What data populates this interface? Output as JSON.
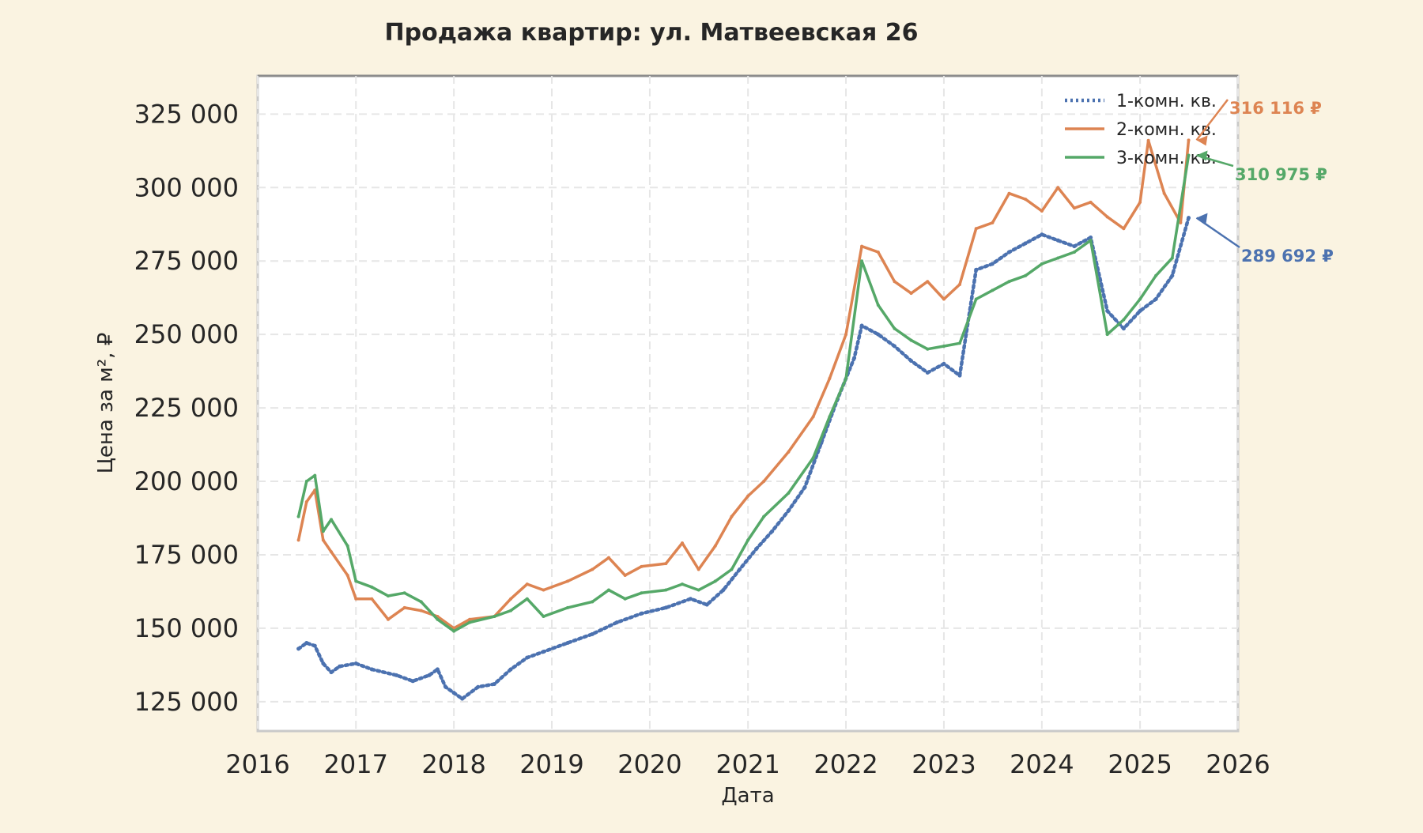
{
  "chart_data": {
    "type": "line",
    "title": "Продажа квартир: ул. Матвеевская 26",
    "xlabel": "Дата",
    "ylabel": "Цена за м², ₽",
    "xlim": [
      "2016-01-01",
      "2026-01-01"
    ],
    "ylim": [
      115000,
      338000
    ],
    "x_ticks": [
      "2016",
      "2017",
      "2018",
      "2019",
      "2020",
      "2021",
      "2022",
      "2023",
      "2024",
      "2025",
      "2026"
    ],
    "y_ticks": [
      125000,
      150000,
      175000,
      200000,
      225000,
      250000,
      275000,
      300000,
      325000
    ],
    "y_tick_labels": [
      "125 000",
      "150 000",
      "175 000",
      "200 000",
      "225 000",
      "250 000",
      "275 000",
      "300 000",
      "325 000"
    ],
    "grid": true,
    "legend_position": "top-right",
    "series": [
      {
        "name": "1-комн. кв.",
        "color": "#4c72b0",
        "style": "dotted",
        "points": [
          [
            "2016-06-01",
            143000
          ],
          [
            "2016-07-01",
            145000
          ],
          [
            "2016-08-01",
            144000
          ],
          [
            "2016-09-01",
            138000
          ],
          [
            "2016-10-01",
            135000
          ],
          [
            "2016-11-01",
            137000
          ],
          [
            "2017-01-01",
            138000
          ],
          [
            "2017-03-01",
            136000
          ],
          [
            "2017-06-01",
            134000
          ],
          [
            "2017-08-01",
            132000
          ],
          [
            "2017-10-01",
            134000
          ],
          [
            "2017-11-01",
            136000
          ],
          [
            "2017-12-01",
            130000
          ],
          [
            "2018-01-01",
            128000
          ],
          [
            "2018-02-01",
            126000
          ],
          [
            "2018-04-01",
            130000
          ],
          [
            "2018-06-01",
            131000
          ],
          [
            "2018-08-01",
            136000
          ],
          [
            "2018-10-01",
            140000
          ],
          [
            "2018-12-01",
            142000
          ],
          [
            "2019-03-01",
            145000
          ],
          [
            "2019-06-01",
            148000
          ],
          [
            "2019-09-01",
            152000
          ],
          [
            "2019-12-01",
            155000
          ],
          [
            "2020-03-01",
            157000
          ],
          [
            "2020-06-01",
            160000
          ],
          [
            "2020-08-01",
            158000
          ],
          [
            "2020-10-01",
            163000
          ],
          [
            "2020-12-01",
            170000
          ],
          [
            "2021-02-01",
            177000
          ],
          [
            "2021-04-01",
            183000
          ],
          [
            "2021-06-01",
            190000
          ],
          [
            "2021-08-01",
            198000
          ],
          [
            "2021-10-01",
            213000
          ],
          [
            "2021-12-01",
            228000
          ],
          [
            "2022-02-01",
            242000
          ],
          [
            "2022-03-01",
            253000
          ],
          [
            "2022-05-01",
            250000
          ],
          [
            "2022-07-01",
            246000
          ],
          [
            "2022-09-01",
            241000
          ],
          [
            "2022-11-01",
            237000
          ],
          [
            "2023-01-01",
            240000
          ],
          [
            "2023-03-01",
            236000
          ],
          [
            "2023-05-01",
            272000
          ],
          [
            "2023-07-01",
            274000
          ],
          [
            "2023-09-01",
            278000
          ],
          [
            "2023-11-01",
            281000
          ],
          [
            "2024-01-01",
            284000
          ],
          [
            "2024-03-01",
            282000
          ],
          [
            "2024-05-01",
            280000
          ],
          [
            "2024-07-01",
            283000
          ],
          [
            "2024-09-01",
            258000
          ],
          [
            "2024-11-01",
            252000
          ],
          [
            "2025-01-01",
            258000
          ],
          [
            "2025-03-01",
            262000
          ],
          [
            "2025-05-01",
            270000
          ],
          [
            "2025-07-01",
            289692
          ]
        ]
      },
      {
        "name": "2-комн. кв.",
        "color": "#dd8452",
        "style": "solid",
        "points": [
          [
            "2016-06-01",
            180000
          ],
          [
            "2016-07-01",
            193000
          ],
          [
            "2016-08-01",
            197000
          ],
          [
            "2016-09-01",
            180000
          ],
          [
            "2016-10-01",
            176000
          ],
          [
            "2016-12-01",
            168000
          ],
          [
            "2017-01-01",
            160000
          ],
          [
            "2017-03-01",
            160000
          ],
          [
            "2017-05-01",
            153000
          ],
          [
            "2017-07-01",
            157000
          ],
          [
            "2017-09-01",
            156000
          ],
          [
            "2017-11-01",
            154000
          ],
          [
            "2018-01-01",
            150000
          ],
          [
            "2018-03-01",
            153000
          ],
          [
            "2018-06-01",
            154000
          ],
          [
            "2018-08-01",
            160000
          ],
          [
            "2018-10-01",
            165000
          ],
          [
            "2018-12-01",
            163000
          ],
          [
            "2019-03-01",
            166000
          ],
          [
            "2019-06-01",
            170000
          ],
          [
            "2019-08-01",
            174000
          ],
          [
            "2019-10-01",
            168000
          ],
          [
            "2019-12-01",
            171000
          ],
          [
            "2020-03-01",
            172000
          ],
          [
            "2020-05-01",
            179000
          ],
          [
            "2020-07-01",
            170000
          ],
          [
            "2020-09-01",
            178000
          ],
          [
            "2020-11-01",
            188000
          ],
          [
            "2021-01-01",
            195000
          ],
          [
            "2021-03-01",
            200000
          ],
          [
            "2021-06-01",
            210000
          ],
          [
            "2021-09-01",
            222000
          ],
          [
            "2021-11-01",
            235000
          ],
          [
            "2022-01-01",
            250000
          ],
          [
            "2022-03-01",
            280000
          ],
          [
            "2022-05-01",
            278000
          ],
          [
            "2022-07-01",
            268000
          ],
          [
            "2022-09-01",
            264000
          ],
          [
            "2022-11-01",
            268000
          ],
          [
            "2023-01-01",
            262000
          ],
          [
            "2023-03-01",
            267000
          ],
          [
            "2023-05-01",
            286000
          ],
          [
            "2023-07-01",
            288000
          ],
          [
            "2023-09-01",
            298000
          ],
          [
            "2023-11-01",
            296000
          ],
          [
            "2024-01-01",
            292000
          ],
          [
            "2024-03-01",
            300000
          ],
          [
            "2024-05-01",
            293000
          ],
          [
            "2024-07-01",
            295000
          ],
          [
            "2024-09-01",
            290000
          ],
          [
            "2024-11-01",
            286000
          ],
          [
            "2025-01-01",
            295000
          ],
          [
            "2025-02-01",
            316000
          ],
          [
            "2025-04-01",
            298000
          ],
          [
            "2025-06-01",
            288000
          ],
          [
            "2025-07-01",
            316116
          ]
        ]
      },
      {
        "name": "3-комн. кв.",
        "color": "#55a868",
        "style": "solid-markers",
        "points": [
          [
            "2016-06-01",
            188000
          ],
          [
            "2016-07-01",
            200000
          ],
          [
            "2016-08-01",
            202000
          ],
          [
            "2016-09-01",
            183000
          ],
          [
            "2016-10-01",
            187000
          ],
          [
            "2016-12-01",
            178000
          ],
          [
            "2017-01-01",
            166000
          ],
          [
            "2017-03-01",
            164000
          ],
          [
            "2017-05-01",
            161000
          ],
          [
            "2017-07-01",
            162000
          ],
          [
            "2017-09-01",
            159000
          ],
          [
            "2017-11-01",
            153000
          ],
          [
            "2018-01-01",
            149000
          ],
          [
            "2018-03-01",
            152000
          ],
          [
            "2018-06-01",
            154000
          ],
          [
            "2018-08-01",
            156000
          ],
          [
            "2018-10-01",
            160000
          ],
          [
            "2018-12-01",
            154000
          ],
          [
            "2019-03-01",
            157000
          ],
          [
            "2019-06-01",
            159000
          ],
          [
            "2019-08-01",
            163000
          ],
          [
            "2019-10-01",
            160000
          ],
          [
            "2019-12-01",
            162000
          ],
          [
            "2020-03-01",
            163000
          ],
          [
            "2020-05-01",
            165000
          ],
          [
            "2020-07-01",
            163000
          ],
          [
            "2020-09-01",
            166000
          ],
          [
            "2020-11-01",
            170000
          ],
          [
            "2021-01-01",
            180000
          ],
          [
            "2021-03-01",
            188000
          ],
          [
            "2021-06-01",
            196000
          ],
          [
            "2021-09-01",
            208000
          ],
          [
            "2021-11-01",
            222000
          ],
          [
            "2022-01-01",
            235000
          ],
          [
            "2022-03-01",
            275000
          ],
          [
            "2022-05-01",
            260000
          ],
          [
            "2022-07-01",
            252000
          ],
          [
            "2022-09-01",
            248000
          ],
          [
            "2022-11-01",
            245000
          ],
          [
            "2023-01-01",
            246000
          ],
          [
            "2023-03-01",
            247000
          ],
          [
            "2023-05-01",
            262000
          ],
          [
            "2023-07-01",
            265000
          ],
          [
            "2023-09-01",
            268000
          ],
          [
            "2023-11-01",
            270000
          ],
          [
            "2024-01-01",
            274000
          ],
          [
            "2024-03-01",
            276000
          ],
          [
            "2024-05-01",
            278000
          ],
          [
            "2024-07-01",
            282000
          ],
          [
            "2024-09-01",
            250000
          ],
          [
            "2024-11-01",
            255000
          ],
          [
            "2025-01-01",
            262000
          ],
          [
            "2025-03-01",
            270000
          ],
          [
            "2025-05-01",
            276000
          ],
          [
            "2025-07-01",
            310975
          ]
        ]
      }
    ],
    "annotations": [
      {
        "series": "2-комн. кв.",
        "text": "316 116 ₽",
        "color": "#dd8452"
      },
      {
        "series": "3-комн. кв.",
        "text": "310 975 ₽",
        "color": "#55a868"
      },
      {
        "series": "1-комн. кв.",
        "text": "289 692 ₽",
        "color": "#4c72b0"
      }
    ]
  }
}
